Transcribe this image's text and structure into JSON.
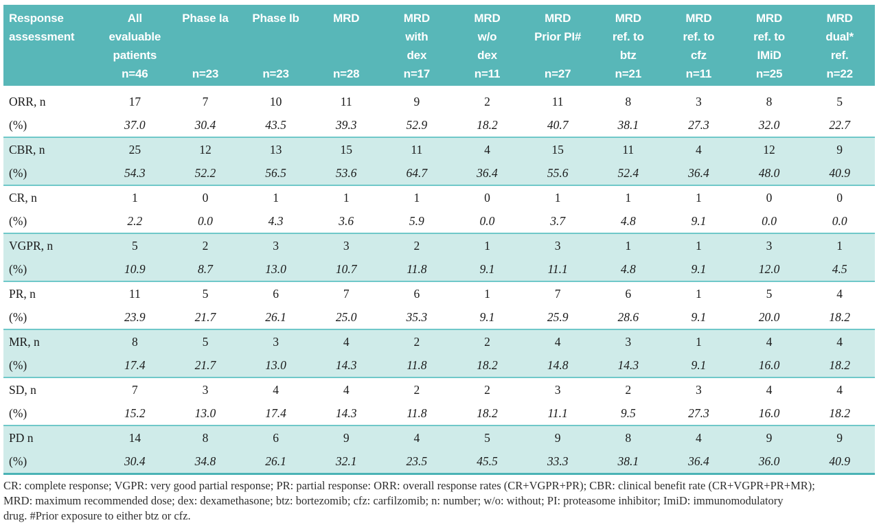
{
  "colors": {
    "header_background": "#58b7b8",
    "header_text": "#ffffff",
    "shaded_band": "#cfebe9",
    "separator_rule": "#6fc8c9",
    "bottom_rule": "#4ab3b5",
    "body_text": "#1a1a1a"
  },
  "table": {
    "header": {
      "label_lines": [
        "Response",
        "assessment"
      ],
      "columns": [
        {
          "lines": [
            "All",
            "evaluable",
            "patients",
            "n=46"
          ]
        },
        {
          "lines": [
            "Phase Ia",
            "",
            "",
            "n=23"
          ]
        },
        {
          "lines": [
            "Phase Ib",
            "",
            "",
            "n=23"
          ]
        },
        {
          "lines": [
            "MRD",
            "",
            "",
            "n=28"
          ]
        },
        {
          "lines": [
            "MRD",
            "with",
            "dex",
            "n=17"
          ]
        },
        {
          "lines": [
            "MRD",
            "w/o",
            "dex",
            "n=11"
          ]
        },
        {
          "lines": [
            "MRD",
            "Prior PI#",
            "",
            "n=27"
          ]
        },
        {
          "lines": [
            "MRD",
            "ref. to",
            "btz",
            "n=21"
          ]
        },
        {
          "lines": [
            "MRD",
            "ref. to",
            "cfz",
            "n=11"
          ]
        },
        {
          "lines": [
            "MRD",
            "ref. to",
            "IMiD",
            "n=25"
          ]
        },
        {
          "lines": [
            "MRD",
            "dual*",
            "ref.",
            "n=22"
          ]
        }
      ]
    },
    "groups": [
      {
        "shaded": false,
        "rows": [
          {
            "label": "ORR, n",
            "pct": false,
            "values": [
              "17",
              "7",
              "10",
              "11",
              "9",
              "2",
              "11",
              "8",
              "3",
              "8",
              "5"
            ]
          },
          {
            "label": "(%)",
            "pct": true,
            "values": [
              "37.0",
              "30.4",
              "43.5",
              "39.3",
              "52.9",
              "18.2",
              "40.7",
              "38.1",
              "27.3",
              "32.0",
              "22.7"
            ]
          }
        ]
      },
      {
        "shaded": true,
        "rows": [
          {
            "label": "CBR, n",
            "pct": false,
            "values": [
              "25",
              "12",
              "13",
              "15",
              "11",
              "4",
              "15",
              "11",
              "4",
              "12",
              "9"
            ]
          },
          {
            "label": "(%)",
            "pct": true,
            "values": [
              "54.3",
              "52.2",
              "56.5",
              "53.6",
              "64.7",
              "36.4",
              "55.6",
              "52.4",
              "36.4",
              "48.0",
              "40.9"
            ]
          }
        ]
      },
      {
        "shaded": false,
        "rows": [
          {
            "label": "CR, n",
            "pct": false,
            "values": [
              "1",
              "0",
              "1",
              "1",
              "1",
              "0",
              "1",
              "1",
              "1",
              "0",
              "0"
            ]
          },
          {
            "label": "(%)",
            "pct": true,
            "values": [
              "2.2",
              "0.0",
              "4.3",
              "3.6",
              "5.9",
              "0.0",
              "3.7",
              "4.8",
              "9.1",
              "0.0",
              "0.0"
            ]
          }
        ]
      },
      {
        "shaded": true,
        "rows": [
          {
            "label": "VGPR, n",
            "pct": false,
            "values": [
              "5",
              "2",
              "3",
              "3",
              "2",
              "1",
              "3",
              "1",
              "1",
              "3",
              "1"
            ]
          },
          {
            "label": "(%)",
            "pct": true,
            "values": [
              "10.9",
              "8.7",
              "13.0",
              "10.7",
              "11.8",
              "9.1",
              "11.1",
              "4.8",
              "9.1",
              "12.0",
              "4.5"
            ]
          }
        ]
      },
      {
        "shaded": false,
        "rows": [
          {
            "label": "PR, n",
            "pct": false,
            "values": [
              "11",
              "5",
              "6",
              "7",
              "6",
              "1",
              "7",
              "6",
              "1",
              "5",
              "4"
            ]
          },
          {
            "label": "(%)",
            "pct": true,
            "values": [
              "23.9",
              "21.7",
              "26.1",
              "25.0",
              "35.3",
              "9.1",
              "25.9",
              "28.6",
              "9.1",
              "20.0",
              "18.2"
            ]
          }
        ]
      },
      {
        "shaded": true,
        "rows": [
          {
            "label": "MR, n",
            "pct": false,
            "values": [
              "8",
              "5",
              "3",
              "4",
              "2",
              "2",
              "4",
              "3",
              "1",
              "4",
              "4"
            ]
          },
          {
            "label": "(%)",
            "pct": true,
            "values": [
              "17.4",
              "21.7",
              "13.0",
              "14.3",
              "11.8",
              "18.2",
              "14.8",
              "14.3",
              "9.1",
              "16.0",
              "18.2"
            ]
          }
        ]
      },
      {
        "shaded": false,
        "rows": [
          {
            "label": "SD, n",
            "pct": false,
            "values": [
              "7",
              "3",
              "4",
              "4",
              "2",
              "2",
              "3",
              "2",
              "3",
              "4",
              "4"
            ]
          },
          {
            "label": "(%)",
            "pct": true,
            "values": [
              "15.2",
              "13.0",
              "17.4",
              "14.3",
              "11.8",
              "18.2",
              "11.1",
              "9.5",
              "27.3",
              "16.0",
              "18.2"
            ]
          }
        ]
      },
      {
        "shaded": true,
        "rows": [
          {
            "label": "PD n",
            "pct": false,
            "values": [
              "14",
              "8",
              "6",
              "9",
              "4",
              "5",
              "9",
              "8",
              "4",
              "9",
              "9"
            ]
          },
          {
            "label": "(%)",
            "pct": true,
            "values": [
              "30.4",
              "34.8",
              "26.1",
              "32.1",
              "23.5",
              "45.5",
              "33.3",
              "38.1",
              "36.4",
              "36.0",
              "40.9"
            ]
          }
        ]
      }
    ]
  },
  "footer": {
    "lines": [
      "CR: complete response; VGPR: very good partial response; PR: partial response: ORR: overall response rates (CR+VGPR+PR); CBR: clinical benefit rate (CR+VGPR+PR+MR);",
      "MRD: maximum recommended dose; dex: dexamethasone; btz: bortezomib; cfz: carfilzomib; n: number; w/o: without; PI: proteasome inhibitor; ImiD: immunomodulatory",
      "drug. #Prior exposure to either btz or cfz."
    ]
  }
}
